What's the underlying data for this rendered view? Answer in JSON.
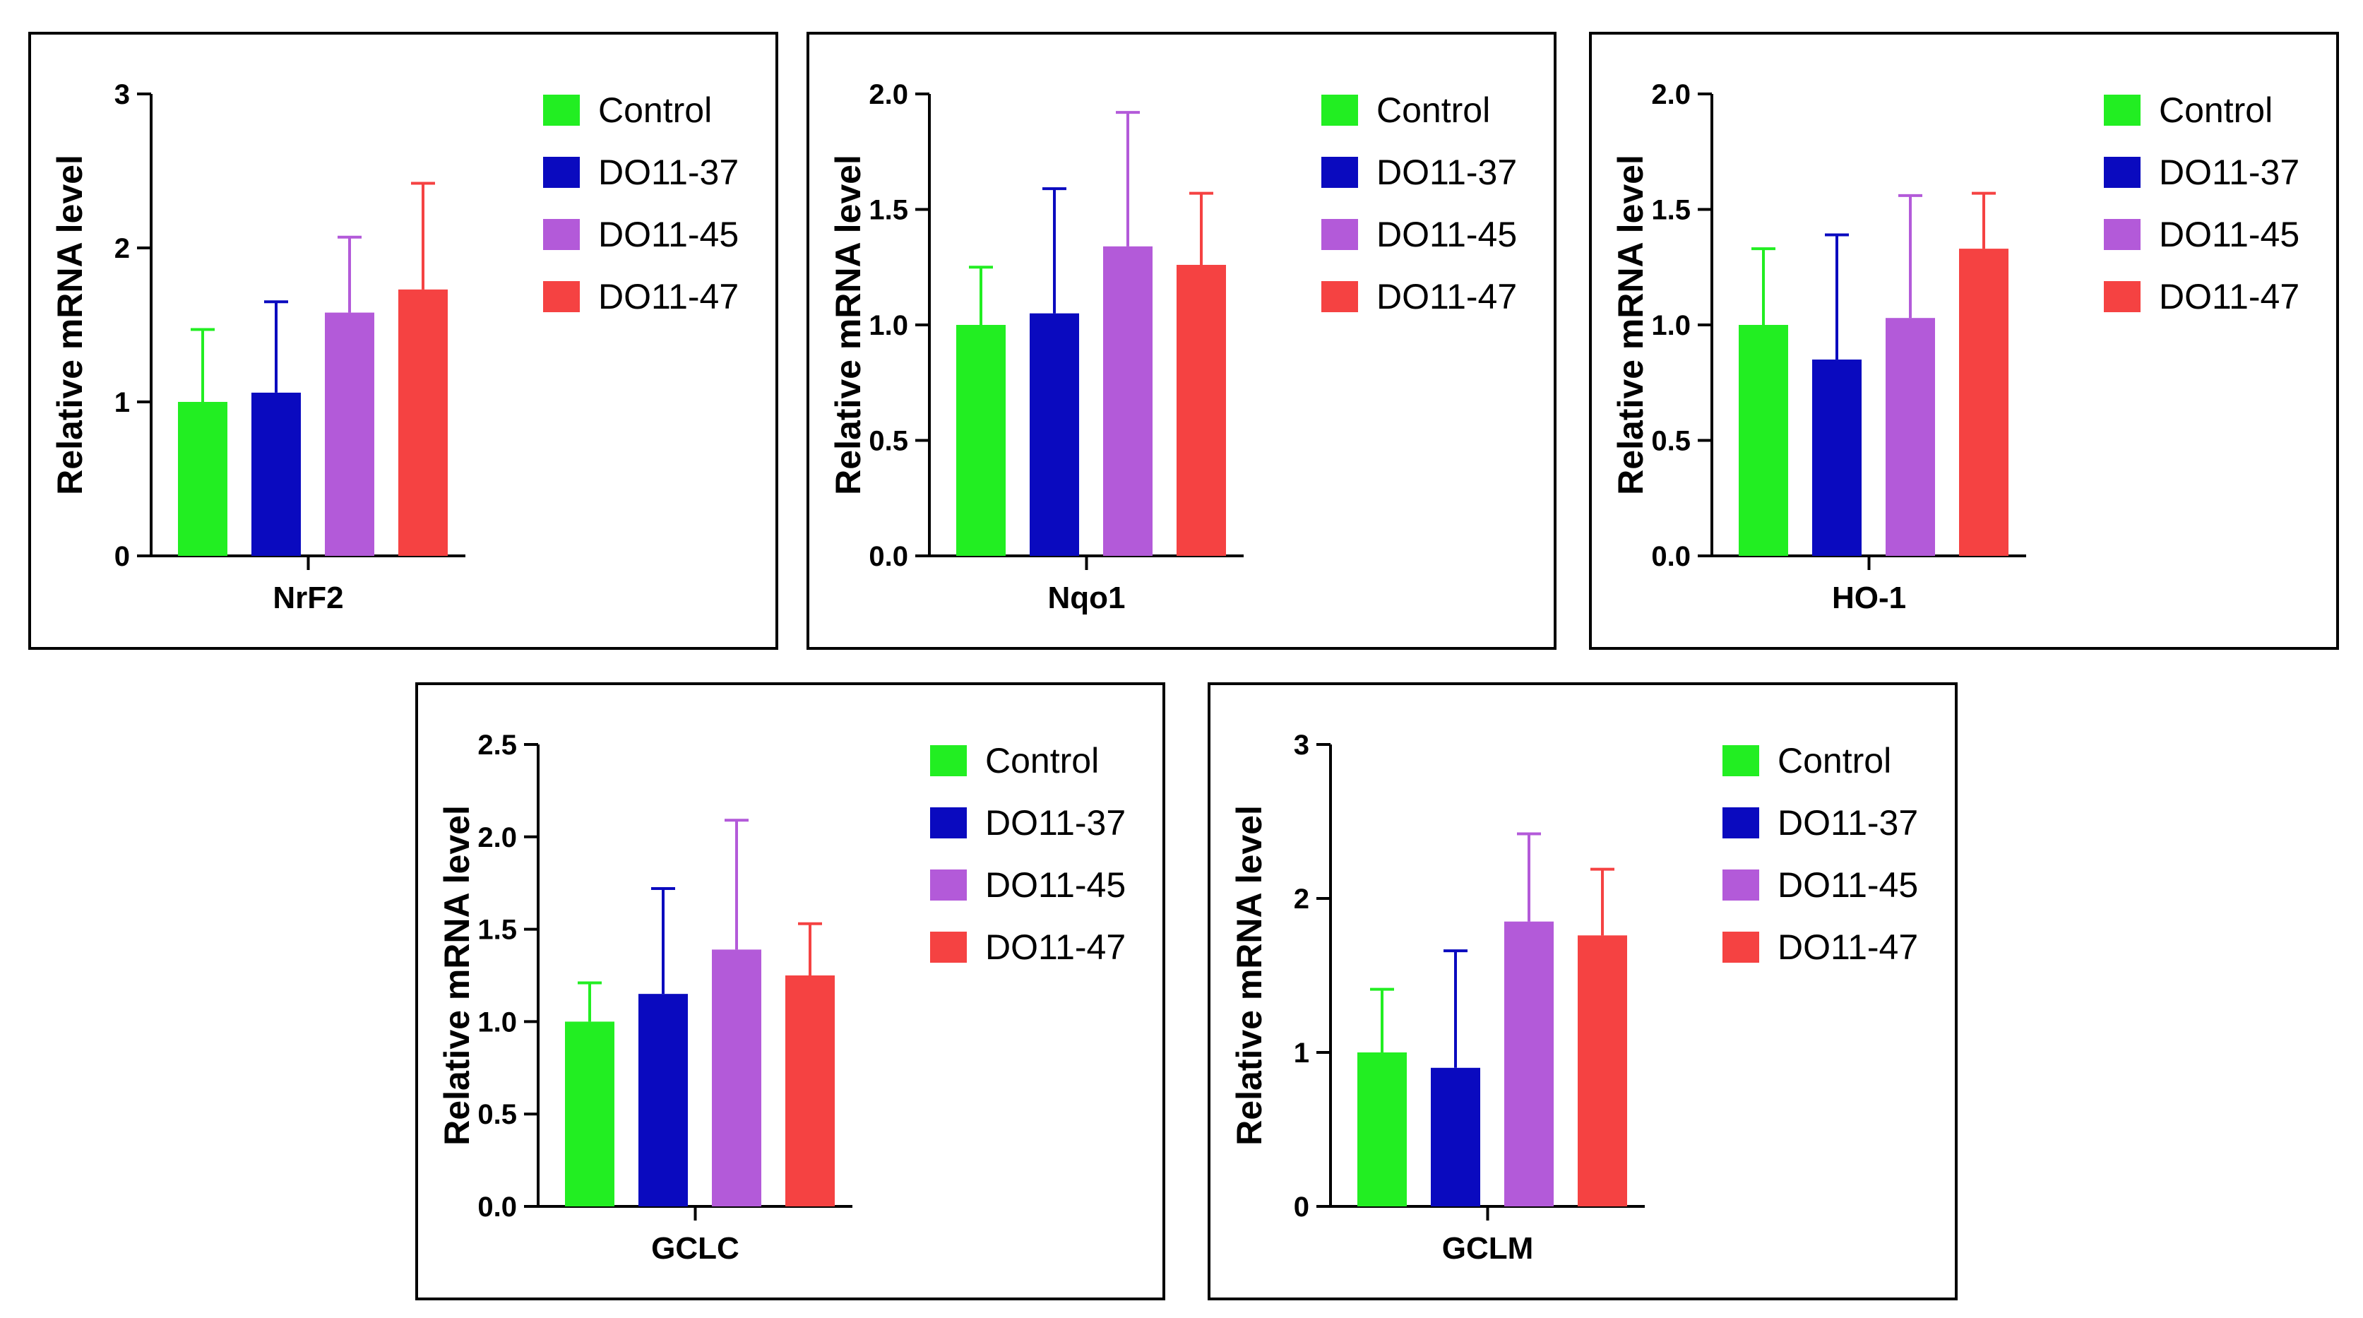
{
  "colors": {
    "control": "#22ee22",
    "do11_37": "#0a0abf",
    "do11_45": "#b35ad9",
    "do11_47": "#f54242"
  },
  "chart_data": [
    {
      "type": "bar",
      "xlabel": "NrF2",
      "ylabel": "Relative mRNA level",
      "ylim": [
        0,
        3
      ],
      "yticks": [
        "0",
        "1",
        "2",
        "3"
      ],
      "legend": "right",
      "series": [
        {
          "name": "Control",
          "value": 1.0,
          "error": 0.47
        },
        {
          "name": "DO11-37",
          "value": 1.06,
          "error": 0.59
        },
        {
          "name": "DO11-45",
          "value": 1.58,
          "error": 0.49
        },
        {
          "name": "DO11-47",
          "value": 1.73,
          "error": 0.69
        }
      ]
    },
    {
      "type": "bar",
      "xlabel": "Nqo1",
      "ylabel": "Relative mRNA level",
      "ylim": [
        0,
        2.0
      ],
      "yticks": [
        "0.0",
        "0.5",
        "1.0",
        "1.5",
        "2.0"
      ],
      "legend": "right",
      "series": [
        {
          "name": "Control",
          "value": 1.0,
          "error": 0.25
        },
        {
          "name": "DO11-37",
          "value": 1.05,
          "error": 0.54
        },
        {
          "name": "DO11-45",
          "value": 1.34,
          "error": 0.58
        },
        {
          "name": "DO11-47",
          "value": 1.26,
          "error": 0.31
        }
      ]
    },
    {
      "type": "bar",
      "xlabel": "HO-1",
      "ylabel": "Relative mRNA level",
      "ylim": [
        0,
        2.0
      ],
      "yticks": [
        "0.0",
        "0.5",
        "1.0",
        "1.5",
        "2.0"
      ],
      "legend": "right",
      "series": [
        {
          "name": "Control",
          "value": 1.0,
          "error": 0.33
        },
        {
          "name": "DO11-37",
          "value": 0.85,
          "error": 0.54
        },
        {
          "name": "DO11-45",
          "value": 1.03,
          "error": 0.53
        },
        {
          "name": "DO11-47",
          "value": 1.33,
          "error": 0.24
        }
      ]
    },
    {
      "type": "bar",
      "xlabel": "GCLC",
      "ylabel": "Relative mRNA level",
      "ylim": [
        0,
        2.5
      ],
      "yticks": [
        "0.0",
        "0.5",
        "1.0",
        "1.5",
        "2.0",
        "2.5"
      ],
      "legend": "right",
      "series": [
        {
          "name": "Control",
          "value": 1.0,
          "error": 0.21
        },
        {
          "name": "DO11-37",
          "value": 1.15,
          "error": 0.57
        },
        {
          "name": "DO11-45",
          "value": 1.39,
          "error": 0.7
        },
        {
          "name": "DO11-47",
          "value": 1.25,
          "error": 0.28
        }
      ]
    },
    {
      "type": "bar",
      "xlabel": "GCLM",
      "ylabel": "Relative mRNA level",
      "ylim": [
        0,
        3
      ],
      "yticks": [
        "0",
        "1",
        "2",
        "3"
      ],
      "legend": "right",
      "series": [
        {
          "name": "Control",
          "value": 1.0,
          "error": 0.41
        },
        {
          "name": "DO11-37",
          "value": 0.9,
          "error": 0.76
        },
        {
          "name": "DO11-45",
          "value": 1.85,
          "error": 0.57
        },
        {
          "name": "DO11-47",
          "value": 1.76,
          "error": 0.43
        }
      ]
    }
  ]
}
